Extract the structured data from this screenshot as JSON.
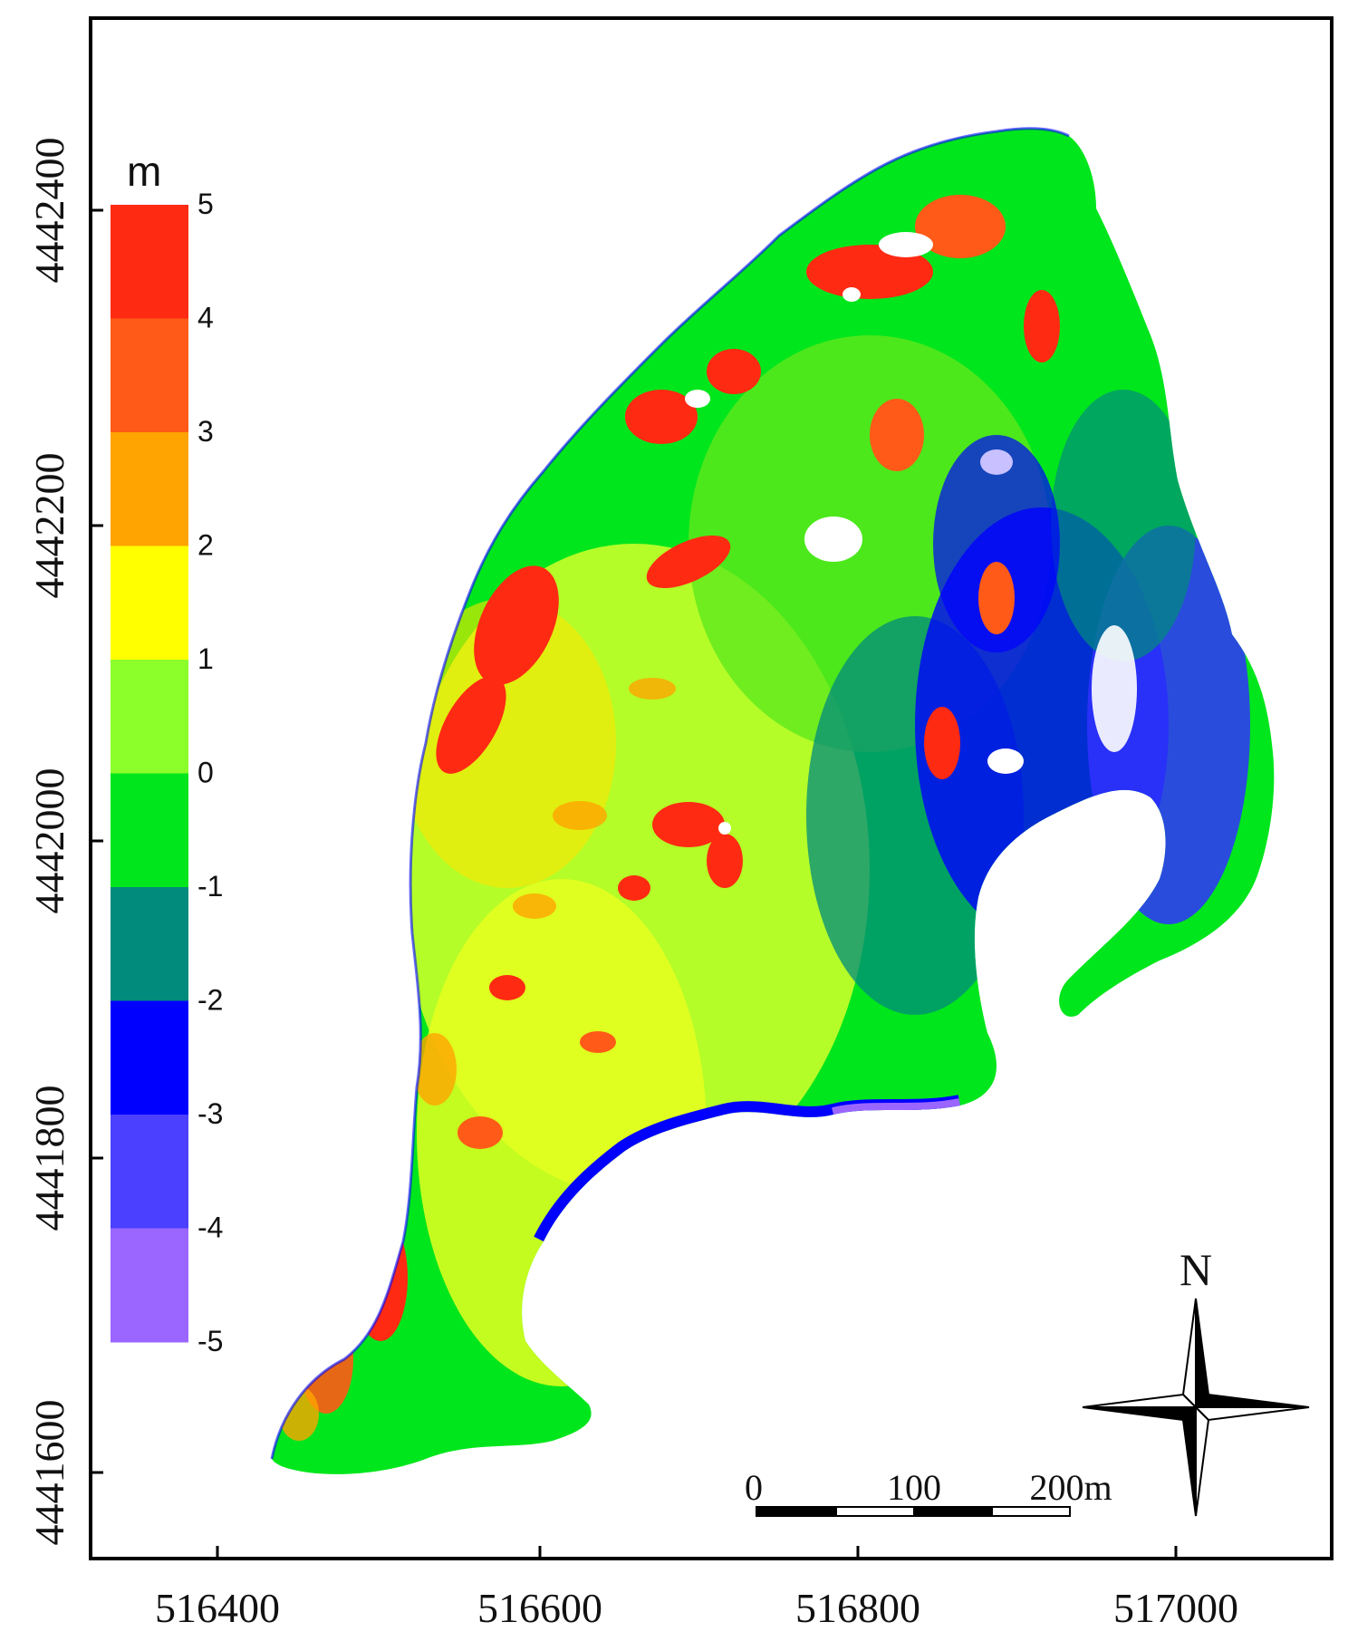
{
  "map": {
    "x_ticks": [
      "516400",
      "516600",
      "516800",
      "517000"
    ],
    "y_ticks": [
      "4442400",
      "4442200",
      "4442000",
      "4441800",
      "4441600"
    ]
  },
  "legend": {
    "unit": "m",
    "labels": [
      "5",
      "4",
      "3",
      "2",
      "1",
      "0",
      "-1",
      "-2",
      "-3",
      "-4",
      "-5"
    ],
    "colors": [
      "#ff2a12",
      "#ff5a17",
      "#ffa400",
      "#ffff00",
      "#8cff2a",
      "#00e61c",
      "#008b7c",
      "#0000ff",
      "#4b40ff",
      "#9a66ff"
    ]
  },
  "scale_bar": {
    "labels": [
      "0",
      "100",
      "200m"
    ]
  },
  "north_arrow": {
    "label": "N"
  }
}
